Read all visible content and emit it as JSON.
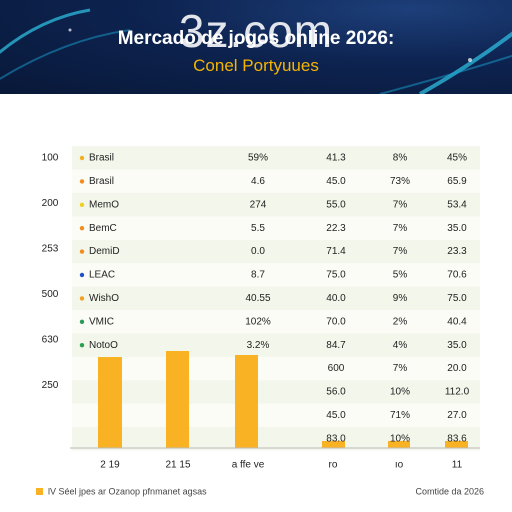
{
  "header": {
    "brand": "3z.com",
    "title": "Mercado de jogos online 2026:",
    "subtitle": "Conel Portyuues"
  },
  "axis_labels": [
    "100",
    "200",
    "253",
    "500",
    "630",
    "250"
  ],
  "table": {
    "rows": [
      {
        "label": "Brasil",
        "dot": "#f2b01e",
        "cells": [
          "59%",
          "41.3",
          "8%",
          "45%"
        ]
      },
      {
        "label": "Brasil",
        "dot": "#f28c1e",
        "cells": [
          "4.6",
          "45.0",
          "73%",
          "65.9"
        ]
      },
      {
        "label": "MemO",
        "dot": "#f2d01e",
        "cells": [
          "274",
          "55.0",
          "7%",
          "53.4"
        ]
      },
      {
        "label": "BemC",
        "dot": "#f28c1e",
        "cells": [
          "5.5",
          "22.3",
          "7%",
          "35.0"
        ]
      },
      {
        "label": "DemiD",
        "dot": "#f28c1e",
        "cells": [
          "0.0",
          "71.4",
          "7%",
          "23.3"
        ]
      },
      {
        "label": "LEAC",
        "dot": "#1e50c8",
        "cells": [
          "8.7",
          "75.0",
          "5%",
          "70.6"
        ]
      },
      {
        "label": "WishO",
        "dot": "#f2a01e",
        "cells": [
          "40.55",
          "40.0",
          "9%",
          "75.0"
        ]
      },
      {
        "label": "VMIC",
        "dot": "#2a9a5a",
        "cells": [
          "102%",
          "70.0",
          "2%",
          "40.4"
        ]
      },
      {
        "label": "NotoO",
        "dot": "#2aa050",
        "cells": [
          "3.2%",
          "84.7",
          "4%",
          "35.0"
        ]
      },
      {
        "cells": [
          "600",
          "7%",
          "20.0"
        ]
      },
      {
        "cells": [
          "56.0",
          "10%",
          "112.0"
        ]
      },
      {
        "cells": [
          "45.0",
          "71%",
          "27.0"
        ]
      },
      {
        "cells": [
          "83.0",
          "10%",
          "83.6"
        ]
      }
    ]
  },
  "x_labels": [
    "2 19",
    "21 15",
    "a ffe ve",
    "ro",
    "ıo",
    "11"
  ],
  "footer": {
    "legend": "lV Séel jpes ar Ozanop pfnmanet agsas",
    "note": "Comtide da 2026"
  }
}
